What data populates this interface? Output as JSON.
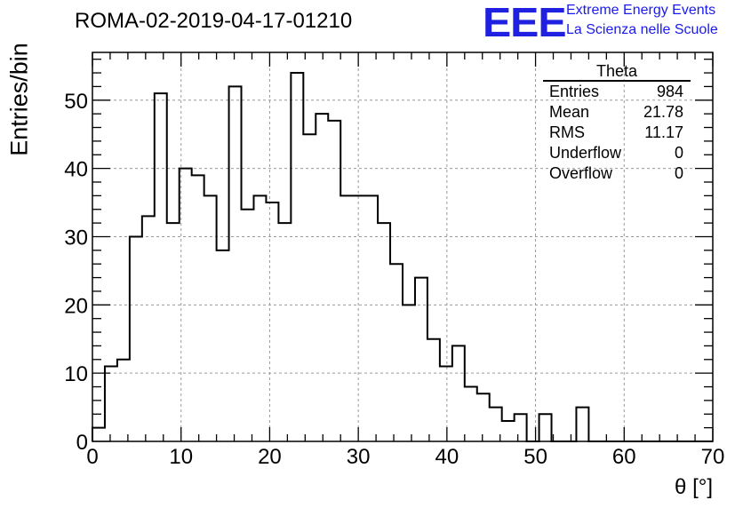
{
  "header": {
    "run_title": "ROMA-02-2019-04-17-01210",
    "logo_text": "EEE",
    "logo_line1": "Extreme Energy Events",
    "logo_line2": "La Scienza nelle Scuole"
  },
  "stats_box": {
    "title": "Theta",
    "rows": [
      {
        "label": "Entries",
        "value": "984"
      },
      {
        "label": "Mean",
        "value": "21.78"
      },
      {
        "label": "RMS",
        "value": "11.17"
      },
      {
        "label": "Underflow",
        "value": "0"
      },
      {
        "label": "Overflow",
        "value": "0"
      }
    ]
  },
  "chart_data": {
    "type": "histogram",
    "title": "ROMA-02-2019-04-17-01210",
    "xlabel": "θ [°]",
    "ylabel": "Entries/bin",
    "xlim": [
      0,
      70
    ],
    "ylim": [
      0,
      57
    ],
    "bin_width": 1.4,
    "bin_start": 0,
    "values": [
      2,
      11,
      12,
      30,
      33,
      51,
      32,
      40,
      39,
      36,
      28,
      52,
      34,
      36,
      35,
      32,
      54,
      45,
      48,
      47,
      36,
      36,
      36,
      32,
      26,
      20,
      24,
      15,
      11,
      14,
      8,
      7,
      5,
      3,
      4,
      0,
      4,
      0,
      0,
      5,
      0,
      0,
      0,
      0,
      0,
      0,
      0,
      0,
      0,
      0
    ],
    "x_ticks": [
      0,
      10,
      20,
      30,
      40,
      50,
      60,
      70
    ],
    "y_ticks": [
      0,
      10,
      20,
      30,
      40,
      50
    ],
    "grid": true,
    "line_color": "#000000",
    "grid_color": "#9a9a9a"
  }
}
